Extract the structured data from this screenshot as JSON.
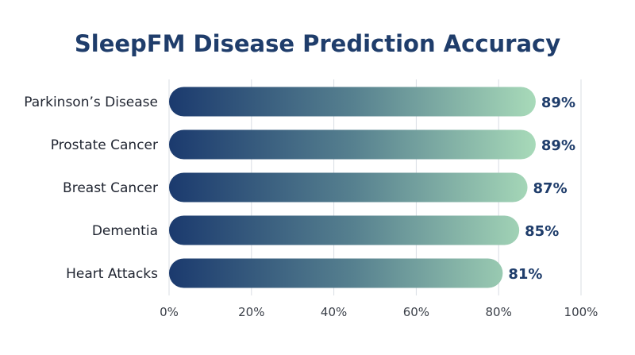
{
  "chart_data": {
    "type": "bar",
    "orientation": "horizontal",
    "title": "SleepFM Disease Prediction Accuracy",
    "xlabel": "",
    "ylabel": "",
    "categories": [
      "Parkinson’s Disease",
      "Prostate Cancer",
      "Breast Cancer",
      "Dementia",
      "Heart Attacks"
    ],
    "values": [
      89,
      89,
      87,
      85,
      81
    ],
    "value_labels": [
      "89%",
      "89%",
      "87%",
      "85%",
      "81%"
    ],
    "xlim": [
      0,
      100
    ],
    "x_ticks": [
      0,
      20,
      40,
      60,
      80,
      100
    ],
    "x_tick_labels": [
      "0%",
      "20%",
      "40%",
      "60%",
      "80%",
      "100%"
    ],
    "grid": true,
    "legend": "none",
    "colors": {
      "gradient_start": "#1b3a6e",
      "gradient_mid": "#56808f",
      "gradient_end": "#a8dab9",
      "title": "#1f3d6b",
      "value_label": "#1f3d6b",
      "grid": "#d9dde3"
    }
  }
}
